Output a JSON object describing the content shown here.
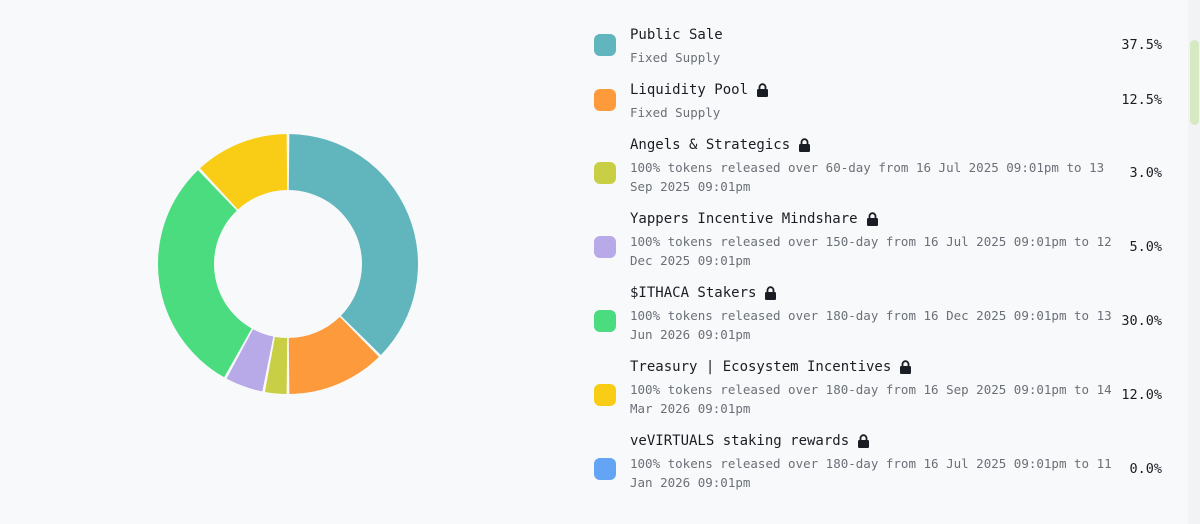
{
  "chart_data": {
    "type": "pie",
    "variant": "donut",
    "legend_position": "right",
    "slices": [
      {
        "label": "Public Sale",
        "value": 37.5,
        "display": "37.5%",
        "color": "#61b6bd",
        "description": "Fixed Supply",
        "locked": false
      },
      {
        "label": "Liquidity Pool",
        "value": 12.5,
        "display": "12.5%",
        "color": "#fd9a3c",
        "description": "Fixed Supply",
        "locked": true
      },
      {
        "label": "Angels & Strategics",
        "value": 3.0,
        "display": "3.0%",
        "color": "#c9cf45",
        "description": "100% tokens released over 60-day from 16 Jul 2025 09:01pm to 13 Sep 2025 09:01pm",
        "locked": true
      },
      {
        "label": "Yappers Incentive Mindshare",
        "value": 5.0,
        "display": "5.0%",
        "color": "#b8a9e8",
        "description": "100% tokens released over 150-day from 16 Jul 2025 09:01pm to 12 Dec 2025 09:01pm",
        "locked": true
      },
      {
        "label": "$ITHACA Stakers",
        "value": 30.0,
        "display": "30.0%",
        "color": "#4bdc7f",
        "description": "100% tokens released over 180-day from 16 Dec 2025 09:01pm to 13 Jun 2026 09:01pm",
        "locked": true
      },
      {
        "label": "Treasury | Ecosystem Incentives",
        "value": 12.0,
        "display": "12.0%",
        "color": "#f9cd16",
        "description": "100% tokens released over 180-day from 16 Sep 2025 09:01pm to 14 Mar 2026 09:01pm",
        "locked": true
      },
      {
        "label": "veVIRTUALS staking rewards",
        "value": 0.0,
        "display": "0.0%",
        "color": "#63a4f5",
        "description": "100% tokens released over 180-day from 16 Jul 2025 09:01pm to 11 Jan 2026 09:01pm",
        "locked": true
      }
    ]
  },
  "icons": {
    "lock": "lock-icon"
  },
  "theme": {
    "background": "#f8f9fa",
    "text": "#1a1d23",
    "muted_text": "#6b7078",
    "scrollbar_thumb": "#d6e9c2"
  }
}
